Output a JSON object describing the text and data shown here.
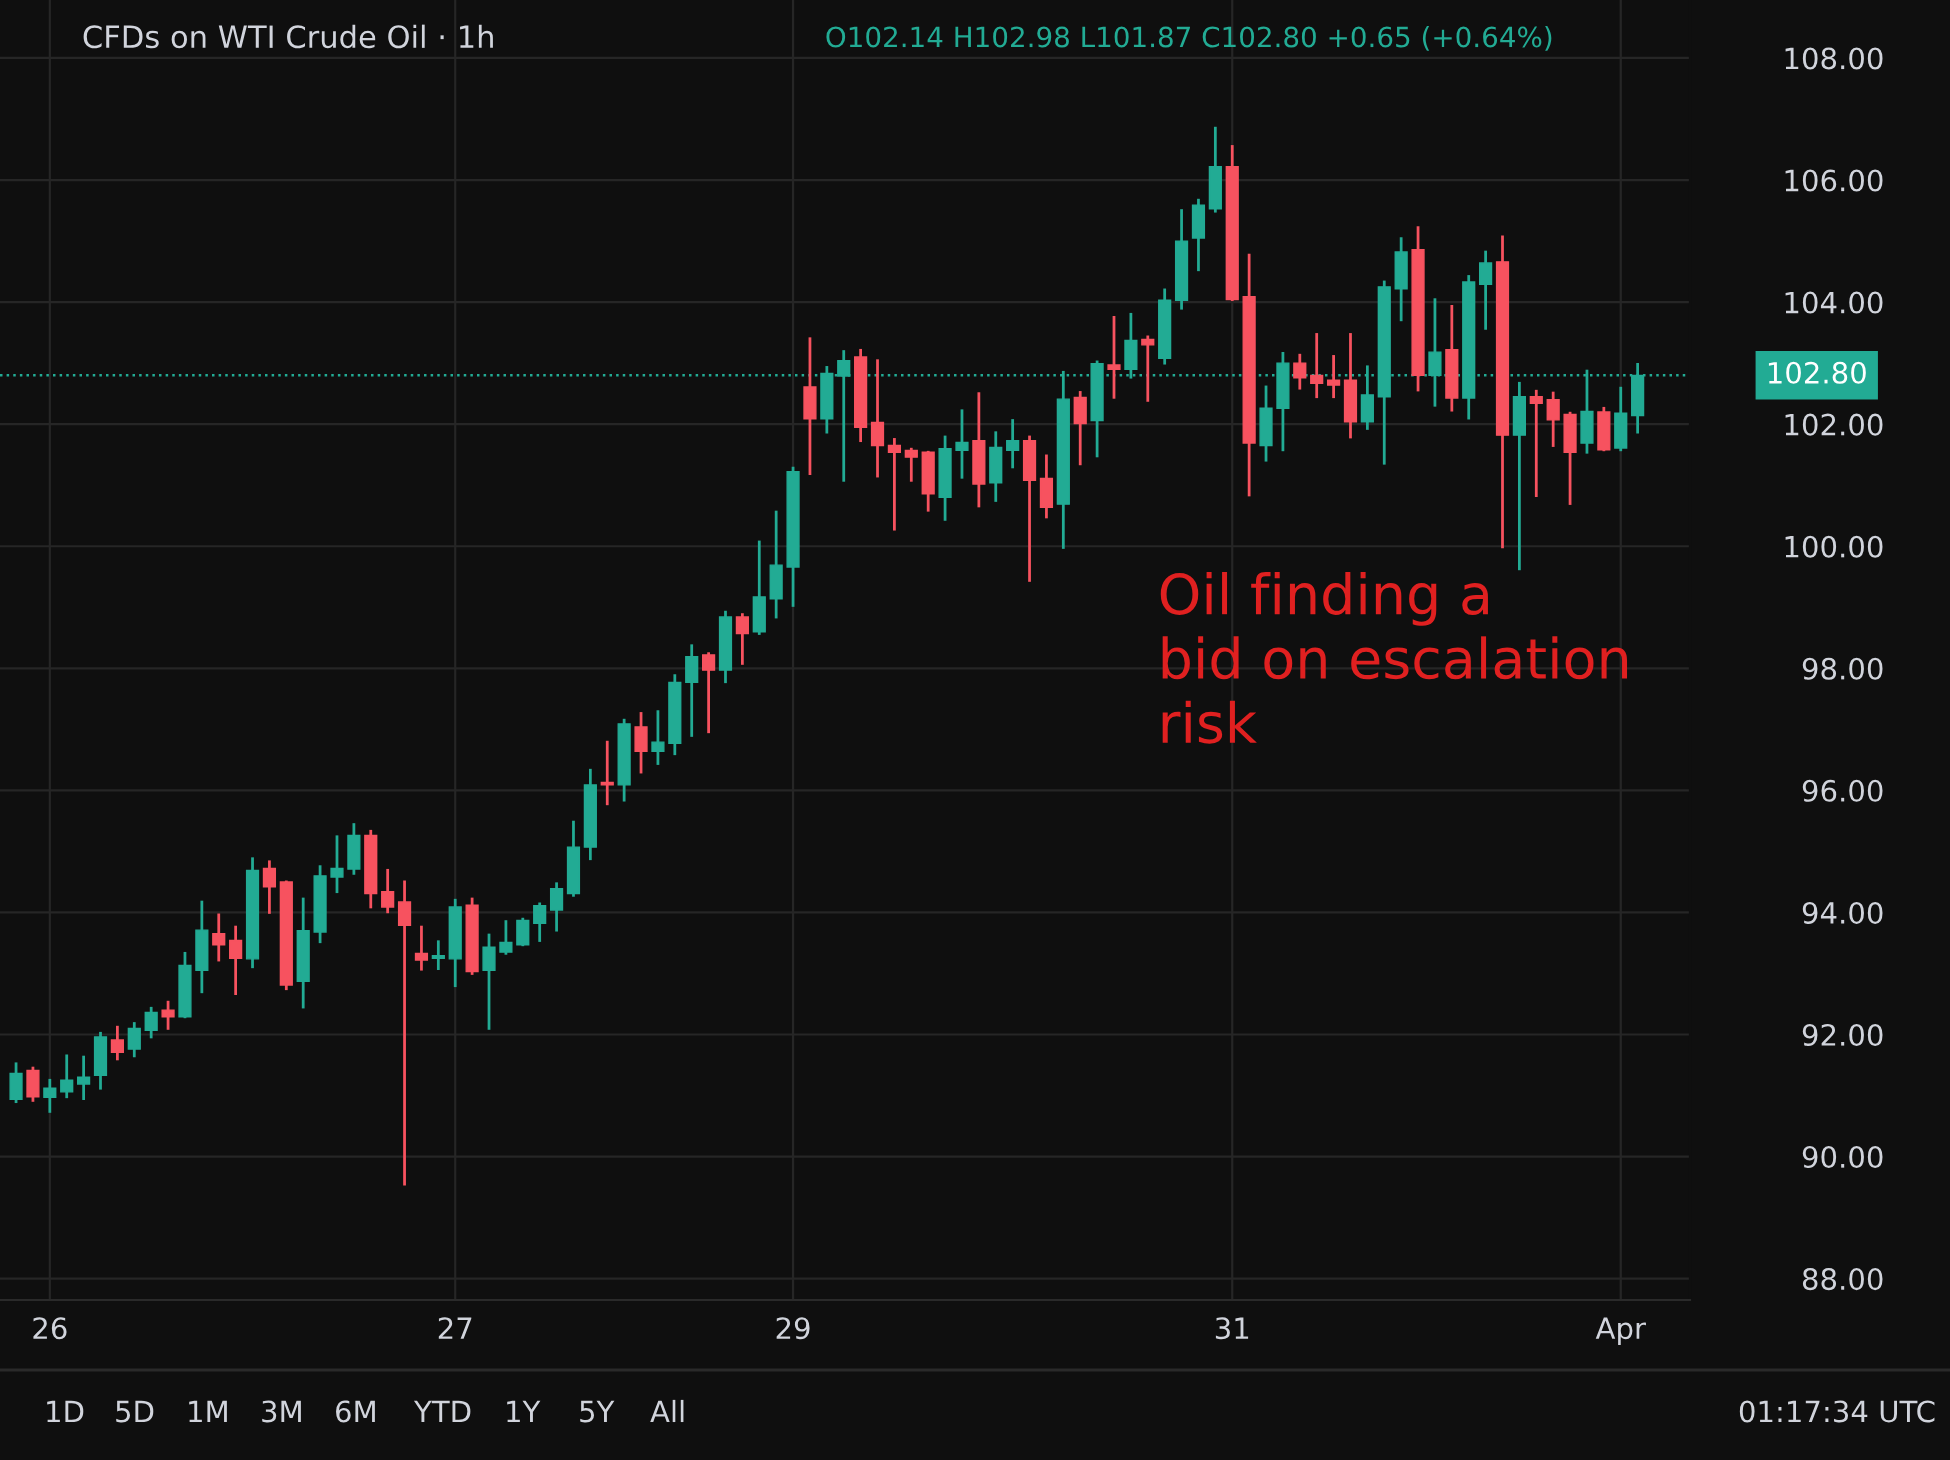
{
  "chart_data": {
    "type": "candlestick",
    "title": "CFDs on WTI Crude Oil · 1h",
    "subtitle": "O102.14 H102.98 L101.87 C102.80 +0.65 (+0.64%)",
    "categories": [
      null,
      null,
      "26",
      null,
      null,
      null,
      null,
      null,
      null,
      null,
      null,
      null,
      null,
      null,
      null,
      null,
      null,
      null,
      null,
      null,
      null,
      null,
      null,
      null,
      null,
      null,
      "27",
      null,
      null,
      null,
      null,
      null,
      null,
      null,
      null,
      null,
      null,
      null,
      null,
      null,
      null,
      null,
      null,
      null,
      null,
      null,
      "29",
      null,
      null,
      null,
      null,
      null,
      null,
      null,
      null,
      null,
      null,
      null,
      null,
      null,
      null,
      null,
      null,
      null,
      null,
      null,
      null,
      null,
      null,
      null,
      null,
      null,
      "31",
      null,
      null,
      null,
      null,
      null,
      null,
      null,
      null,
      null,
      null,
      null,
      null,
      null,
      null,
      null,
      null,
      null,
      null,
      null,
      null,
      null,
      null,
      "Apr",
      null
    ],
    "ohlc": [
      [
        90.94,
        91.52,
        90.9,
        91.36
      ],
      [
        91.41,
        91.45,
        90.92,
        90.98
      ],
      [
        90.97,
        91.25,
        90.74,
        91.12
      ],
      [
        91.06,
        91.65,
        90.98,
        91.25
      ],
      [
        91.19,
        91.63,
        90.95,
        91.3
      ],
      [
        91.33,
        92.02,
        91.12,
        91.96
      ],
      [
        91.91,
        92.12,
        91.6,
        91.71
      ],
      [
        91.76,
        92.18,
        91.65,
        92.1
      ],
      [
        92.07,
        92.43,
        91.96,
        92.36
      ],
      [
        92.4,
        92.53,
        92.1,
        92.29
      ],
      [
        92.29,
        93.33,
        92.29,
        93.13
      ],
      [
        93.05,
        94.17,
        92.7,
        93.71
      ],
      [
        93.65,
        93.96,
        93.22,
        93.47
      ],
      [
        93.54,
        93.76,
        92.67,
        93.25
      ],
      [
        93.24,
        94.88,
        93.11,
        94.69
      ],
      [
        94.72,
        94.83,
        94.0,
        94.42
      ],
      [
        94.5,
        94.5,
        92.75,
        92.81
      ],
      [
        92.87,
        94.22,
        92.45,
        93.7
      ],
      [
        93.68,
        94.75,
        93.52,
        94.6
      ],
      [
        94.58,
        95.24,
        94.34,
        94.72
      ],
      [
        94.71,
        95.44,
        94.64,
        95.26
      ],
      [
        95.26,
        95.33,
        94.09,
        94.31
      ],
      [
        94.34,
        94.69,
        94.01,
        94.09
      ],
      [
        94.17,
        94.5,
        89.55,
        93.79
      ],
      [
        93.33,
        93.76,
        93.07,
        93.22
      ],
      [
        93.25,
        93.52,
        93.08,
        93.29
      ],
      [
        93.24,
        94.2,
        92.8,
        94.09
      ],
      [
        94.12,
        94.22,
        93.0,
        93.03
      ],
      [
        93.05,
        93.63,
        92.1,
        93.43
      ],
      [
        93.35,
        93.85,
        93.33,
        93.51
      ],
      [
        93.47,
        93.89,
        93.47,
        93.87
      ],
      [
        93.82,
        94.14,
        93.54,
        94.11
      ],
      [
        94.04,
        94.47,
        93.71,
        94.39
      ],
      [
        94.31,
        95.48,
        94.28,
        95.07
      ],
      [
        95.07,
        96.33,
        94.88,
        96.09
      ],
      [
        96.13,
        96.79,
        95.78,
        96.09
      ],
      [
        96.09,
        97.15,
        95.84,
        97.09
      ],
      [
        97.04,
        97.26,
        96.3,
        96.64
      ],
      [
        96.64,
        97.29,
        96.44,
        96.79
      ],
      [
        96.77,
        97.88,
        96.6,
        97.77
      ],
      [
        97.77,
        98.37,
        96.9,
        98.19
      ],
      [
        98.22,
        98.24,
        96.96,
        97.97
      ],
      [
        97.97,
        98.92,
        97.78,
        98.84
      ],
      [
        98.84,
        98.88,
        98.08,
        98.57
      ],
      [
        98.6,
        100.07,
        98.57,
        99.17
      ],
      [
        99.14,
        100.56,
        98.84,
        99.69
      ],
      [
        99.66,
        101.28,
        99.03,
        101.22
      ],
      [
        102.61,
        103.4,
        101.19,
        102.09
      ],
      [
        102.09,
        102.93,
        101.87,
        102.83
      ],
      [
        102.79,
        103.19,
        101.08,
        103.04
      ],
      [
        103.1,
        103.21,
        101.73,
        101.95
      ],
      [
        102.03,
        103.04,
        101.15,
        101.65
      ],
      [
        101.65,
        101.75,
        100.28,
        101.54
      ],
      [
        101.57,
        101.59,
        101.08,
        101.46
      ],
      [
        101.54,
        101.54,
        100.59,
        100.86
      ],
      [
        100.8,
        101.79,
        100.44,
        101.6
      ],
      [
        101.57,
        102.22,
        101.13,
        101.7
      ],
      [
        101.73,
        102.5,
        100.66,
        101.02
      ],
      [
        101.04,
        101.86,
        100.75,
        101.62
      ],
      [
        101.57,
        102.06,
        101.3,
        101.73
      ],
      [
        101.73,
        101.79,
        99.44,
        101.08
      ],
      [
        101.11,
        101.48,
        100.48,
        100.64
      ],
      [
        100.69,
        102.85,
        99.98,
        102.41
      ],
      [
        102.44,
        102.52,
        101.35,
        102.01
      ],
      [
        102.06,
        103.02,
        101.48,
        102.99
      ],
      [
        102.97,
        103.75,
        102.44,
        102.9
      ],
      [
        102.9,
        103.8,
        102.77,
        103.37
      ],
      [
        103.39,
        103.43,
        102.39,
        103.3
      ],
      [
        103.08,
        104.2,
        103.0,
        104.03
      ],
      [
        104.03,
        105.5,
        103.9,
        105.0
      ],
      [
        105.05,
        105.67,
        104.53,
        105.59
      ],
      [
        105.53,
        106.85,
        105.49,
        106.22
      ],
      [
        106.22,
        106.55,
        104.04,
        104.04
      ],
      [
        104.09,
        104.77,
        100.84,
        101.69
      ],
      [
        101.65,
        102.61,
        101.41,
        102.26
      ],
      [
        102.26,
        103.16,
        101.58,
        103.0
      ],
      [
        103.0,
        103.13,
        102.59,
        102.76
      ],
      [
        102.8,
        103.47,
        102.45,
        102.67
      ],
      [
        102.72,
        103.11,
        102.45,
        102.64
      ],
      [
        102.72,
        103.47,
        101.79,
        102.04
      ],
      [
        102.04,
        102.94,
        101.93,
        102.48
      ],
      [
        102.45,
        104.33,
        101.36,
        104.25
      ],
      [
        104.22,
        105.04,
        103.71,
        104.82
      ],
      [
        104.86,
        105.22,
        102.56,
        102.8
      ],
      [
        102.8,
        104.04,
        102.31,
        103.18
      ],
      [
        103.22,
        103.93,
        102.23,
        102.43
      ],
      [
        102.43,
        104.42,
        102.1,
        104.33
      ],
      [
        104.29,
        104.82,
        103.57,
        104.64
      ],
      [
        104.66,
        105.07,
        99.99,
        101.82
      ],
      [
        101.82,
        102.67,
        99.63,
        102.45
      ],
      [
        102.45,
        102.54,
        100.83,
        102.34
      ],
      [
        102.4,
        102.51,
        101.65,
        102.07
      ],
      [
        102.16,
        102.18,
        100.7,
        101.54
      ],
      [
        101.69,
        102.87,
        101.54,
        102.21
      ],
      [
        102.2,
        102.26,
        101.58,
        101.58
      ],
      [
        101.61,
        102.59,
        101.58,
        102.18
      ],
      [
        102.14,
        102.98,
        101.87,
        102.8
      ]
    ],
    "colors": [
      "#22ab94",
      "#f7525f",
      "#22ab94",
      "#22ab94",
      "#22ab94",
      "#22ab94",
      "#f7525f",
      "#22ab94",
      "#22ab94",
      "#f7525f",
      "#22ab94",
      "#22ab94",
      "#f7525f",
      "#f7525f",
      "#22ab94",
      "#f7525f",
      "#f7525f",
      "#22ab94",
      "#22ab94",
      "#22ab94",
      "#22ab94",
      "#f7525f",
      "#f7525f",
      "#f7525f",
      "#f7525f",
      "#22ab94",
      "#22ab94",
      "#f7525f",
      "#22ab94",
      "#22ab94",
      "#22ab94",
      "#22ab94",
      "#22ab94",
      "#22ab94",
      "#22ab94",
      "#f7525f",
      "#22ab94",
      "#f7525f",
      "#22ab94",
      "#22ab94",
      "#22ab94",
      "#f7525f",
      "#22ab94",
      "#f7525f",
      "#22ab94",
      "#22ab94",
      "#22ab94",
      "#f7525f",
      "#22ab94",
      "#22ab94",
      "#f7525f",
      "#f7525f",
      "#f7525f",
      "#f7525f",
      "#f7525f",
      "#22ab94",
      "#22ab94",
      "#f7525f",
      "#22ab94",
      "#22ab94",
      "#f7525f",
      "#f7525f",
      "#22ab94",
      "#f7525f",
      "#22ab94",
      "#f7525f",
      "#22ab94",
      "#f7525f",
      "#22ab94",
      "#22ab94",
      "#22ab94",
      "#22ab94",
      "#f7525f",
      "#f7525f",
      "#22ab94",
      "#22ab94",
      "#f7525f",
      "#f7525f",
      "#f7525f",
      "#f7525f",
      "#22ab94",
      "#22ab94",
      "#22ab94",
      "#f7525f",
      "#22ab94",
      "#f7525f",
      "#22ab94",
      "#22ab94",
      "#f7525f",
      "#22ab94",
      "#f7525f",
      "#f7525f",
      "#f7525f",
      "#22ab94",
      "#f7525f",
      "#22ab94",
      "#22ab94"
    ],
    "ylim": [
      87.65,
      108.95
    ],
    "yticks": [
      {
        "value": 88,
        "label": "88.00"
      },
      {
        "value": 90,
        "label": "90.00"
      },
      {
        "value": 92,
        "label": "92.00"
      },
      {
        "value": 94,
        "label": "94.00"
      },
      {
        "value": 96,
        "label": "96.00"
      },
      {
        "value": 98,
        "label": "98.00"
      },
      {
        "value": 100,
        "label": "100.00"
      },
      {
        "value": 102,
        "label": "102.00"
      },
      {
        "value": 104,
        "label": "104.00"
      },
      {
        "value": 106,
        "label": "106.00"
      },
      {
        "value": 108,
        "label": "108.00"
      }
    ],
    "grid": true,
    "ref_lines": [
      {
        "axis": "y",
        "value": 102.8,
        "label": "102.80",
        "color": "#22ab94",
        "line_style": "dotted"
      }
    ],
    "annotations": [
      "Oil finding a\nbid on escalation\nrisk",
      "1D",
      "5D",
      "1M",
      "3M",
      "6M",
      "YTD",
      "1Y",
      "5Y",
      "All",
      "01:17:34 UTC"
    ]
  }
}
